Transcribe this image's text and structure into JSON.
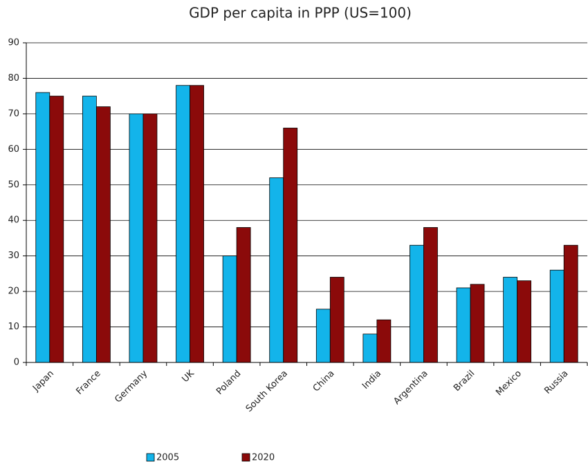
{
  "chart_data": {
    "type": "bar",
    "title": "GDP per capita in PPP (US=100)",
    "categories": [
      "Japan",
      "France",
      "Germany",
      "UK",
      "Poland",
      "South Korea",
      "China",
      "India",
      "Argentina",
      "Brazil",
      "Mexico",
      "Russia"
    ],
    "series": [
      {
        "name": "2005",
        "color": "#13b4ea",
        "values": [
          76,
          75,
          70,
          78,
          30,
          52,
          15,
          8,
          33,
          21,
          24,
          26
        ]
      },
      {
        "name": "2020",
        "color": "#8b0a0a",
        "values": [
          75,
          72,
          70,
          78,
          38,
          66,
          24,
          12,
          38,
          22,
          23,
          33
        ]
      }
    ],
    "ylim": [
      0,
      90
    ],
    "yticks": [
      0,
      10,
      20,
      30,
      40,
      50,
      60,
      70,
      80,
      90
    ],
    "grid": true,
    "legend": "bottom"
  }
}
